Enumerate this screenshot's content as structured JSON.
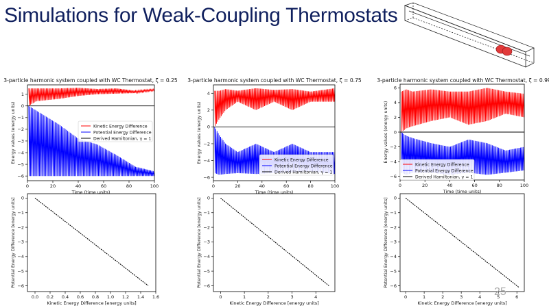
{
  "slide": {
    "title": "Simulations for Weak-Coupling Thermostats",
    "page_number": "25"
  },
  "colors": {
    "title": "#10205e",
    "kinetic": "#ff0000",
    "potential": "#0000ff",
    "hamiltonian": "#000000"
  },
  "chart_data": [
    {
      "type": "line",
      "title": "3-particle harmonic system coupled with WC Thermostat, ζ = 0.25",
      "xlabel": "Time (time units)",
      "ylabel": "Energy values (energy units)",
      "xlim": [
        0,
        100
      ],
      "ylim": [
        -6.4,
        1.8
      ],
      "xticks": [
        0,
        20,
        40,
        60,
        80,
        100
      ],
      "yticks": [
        -6,
        -5,
        -4,
        -3,
        -2,
        -1,
        0,
        1
      ],
      "legend": "center-right",
      "series": [
        {
          "name": "Kinetic Energy Difference",
          "envelope_x": [
            1,
            7,
            25,
            40,
            55,
            70,
            85,
            100
          ],
          "upper": [
            1.5,
            1.5,
            1.5,
            1.55,
            1.45,
            1.5,
            1.3,
            1.45
          ],
          "lower": [
            0.0,
            0.4,
            0.6,
            0.85,
            1.0,
            1.05,
            1.1,
            1.3
          ]
        },
        {
          "name": "Potential Energy Difference",
          "envelope_x": [
            1,
            7,
            25,
            40,
            55,
            70,
            85,
            100
          ],
          "upper": [
            0.0,
            -0.4,
            -1.6,
            -2.8,
            -3.3,
            -4.2,
            -5.2,
            -5.6
          ],
          "lower": [
            -6.0,
            -6.0,
            -6.0,
            -6.0,
            -6.0,
            -6.0,
            -6.0,
            -6.0
          ]
        },
        {
          "name": "Derived Hamiltonian, γ = 1",
          "x": [
            0,
            100
          ],
          "y": [
            0,
            0
          ]
        }
      ]
    },
    {
      "type": "line",
      "title": "3-particle harmonic system coupled with WC Thermostat, ζ = 0.75",
      "xlabel": "Time (time units)",
      "ylabel": "Energy values (energy units)",
      "xlim": [
        0,
        100
      ],
      "ylim": [
        -6.4,
        5.0
      ],
      "xticks": [
        0,
        20,
        40,
        60,
        80,
        100
      ],
      "yticks": [
        -6,
        -4,
        -2,
        0,
        2,
        4
      ],
      "legend": "bottom-right",
      "series": [
        {
          "name": "Kinetic Energy Difference",
          "envelope_x": [
            1,
            5,
            10,
            20,
            35,
            50,
            65,
            80,
            100
          ],
          "upper": [
            4.3,
            4.3,
            4.5,
            4.3,
            4.6,
            4.4,
            4.5,
            4.2,
            4.6
          ],
          "lower": [
            0.0,
            1.0,
            2.0,
            3.0,
            2.0,
            3.0,
            2.0,
            3.0,
            3.0
          ]
        },
        {
          "name": "Potential Energy Difference",
          "envelope_x": [
            1,
            5,
            10,
            20,
            35,
            50,
            65,
            80,
            100
          ],
          "upper": [
            0.0,
            -1.0,
            -2.0,
            -3.0,
            -2.0,
            -3.0,
            -2.0,
            -3.0,
            -3.0
          ],
          "lower": [
            -5.5,
            -5.7,
            -5.6,
            -5.5,
            -5.6,
            -5.5,
            -5.4,
            -5.3,
            -5.6
          ]
        },
        {
          "name": "Derived Hamiltonian, γ = 1",
          "x": [
            0,
            100
          ],
          "y": [
            0,
            0
          ]
        }
      ]
    },
    {
      "type": "line",
      "title": "3-particle harmonic system coupled with WC Thermostat, ζ = 0.99",
      "xlabel": "Time (time units)",
      "ylabel": "Energy values (energy units)",
      "xlim": [
        0,
        100
      ],
      "ylim": [
        -6.5,
        6.5
      ],
      "xticks": [
        0,
        20,
        40,
        60,
        80,
        100
      ],
      "yticks": [
        -6,
        -4,
        -2,
        0,
        2,
        4,
        6
      ],
      "legend": "bottom-right",
      "series": [
        {
          "name": "Kinetic Energy Difference",
          "envelope_x": [
            1,
            5,
            10,
            25,
            40,
            55,
            70,
            85,
            100
          ],
          "upper": [
            5.5,
            5.8,
            5.5,
            5.8,
            5.5,
            5.5,
            6.0,
            5.5,
            5.2
          ],
          "lower": [
            0.0,
            0.5,
            0.8,
            1.5,
            2.0,
            1.0,
            1.5,
            2.5,
            2.0
          ]
        },
        {
          "name": "Potential Energy Difference",
          "envelope_x": [
            1,
            5,
            10,
            25,
            40,
            55,
            70,
            85,
            100
          ],
          "upper": [
            0.0,
            -0.5,
            -0.8,
            -1.5,
            -2.0,
            -1.0,
            -1.5,
            -2.5,
            -2.0
          ],
          "lower": [
            -5.5,
            -5.8,
            -5.5,
            -5.5,
            -5.8,
            -5.5,
            -5.8,
            -5.5,
            -5.2
          ]
        },
        {
          "name": "Derived Hamiltonian, γ = 1",
          "x": [
            0,
            100
          ],
          "y": [
            0,
            0
          ]
        }
      ]
    },
    {
      "type": "scatter",
      "xlabel": "Kinetic Energy Difference [energy units]",
      "ylabel": "Potential Energy Difference [energy units]",
      "xlim": [
        -0.1,
        1.6
      ],
      "ylim": [
        -6.4,
        0.3
      ],
      "xticks": [
        0.0,
        0.2,
        0.4,
        0.6,
        0.8,
        1.0,
        1.2,
        1.4,
        1.6
      ],
      "yticks": [
        0,
        -1,
        -2,
        -3,
        -4,
        -5,
        -6
      ],
      "series": [
        {
          "x": [
            0,
            1.5
          ],
          "y": [
            0,
            -6.0
          ]
        }
      ]
    },
    {
      "type": "scatter",
      "xlabel": "Kinetic Energy Difference [energy units]",
      "ylabel": "Potential Energy Difference [energy units]",
      "xlim": [
        -0.3,
        4.8
      ],
      "ylim": [
        -6.4,
        0.3
      ],
      "xticks": [
        0,
        1,
        2,
        3,
        4
      ],
      "yticks": [
        0,
        -1,
        -2,
        -3,
        -4,
        -5,
        -6
      ],
      "series": [
        {
          "x": [
            0,
            4.55
          ],
          "y": [
            0,
            -6.0
          ]
        }
      ]
    },
    {
      "type": "scatter",
      "xlabel": "Kinetic Energy Difference [energy units]",
      "ylabel": "Potential Energy Difference [energy units]",
      "xlim": [
        -0.3,
        6.4
      ],
      "ylim": [
        -6.4,
        0.3
      ],
      "xticks": [
        0,
        1,
        2,
        3,
        4,
        5,
        6
      ],
      "yticks": [
        0,
        -1,
        -2,
        -3,
        -4,
        -5,
        -6
      ],
      "series": [
        {
          "x": [
            0,
            6.1
          ],
          "y": [
            0,
            -6.1
          ]
        }
      ]
    }
  ]
}
